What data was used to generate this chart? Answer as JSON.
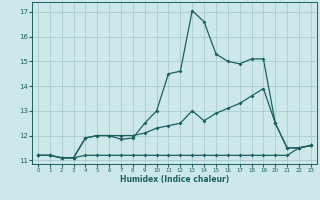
{
  "xlabel": "Humidex (Indice chaleur)",
  "xlim": [
    -0.5,
    23.5
  ],
  "ylim": [
    10.85,
    17.4
  ],
  "yticks": [
    11,
    12,
    13,
    14,
    15,
    16,
    17
  ],
  "xticks": [
    0,
    1,
    2,
    3,
    4,
    5,
    6,
    7,
    8,
    9,
    10,
    11,
    12,
    13,
    14,
    15,
    16,
    17,
    18,
    19,
    20,
    21,
    22,
    23
  ],
  "bg_color": "#cce8e8",
  "grid_color": "#aacccc",
  "line_color": "#1a6060",
  "line1_x": [
    0,
    1,
    2,
    3,
    4,
    5,
    6,
    7,
    8,
    9,
    10,
    11,
    12,
    13,
    14,
    15,
    16,
    17,
    18,
    19,
    20,
    21,
    22,
    23
  ],
  "line1_y": [
    11.2,
    11.2,
    11.1,
    11.1,
    11.9,
    12.0,
    12.0,
    11.85,
    11.9,
    12.5,
    13.0,
    14.5,
    14.6,
    17.05,
    16.6,
    15.3,
    15.0,
    14.9,
    15.1,
    15.1,
    12.5,
    11.5,
    11.5,
    11.6
  ],
  "line2_x": [
    0,
    1,
    2,
    3,
    4,
    5,
    6,
    7,
    8,
    9,
    10,
    11,
    12,
    13,
    14,
    15,
    16,
    17,
    18,
    19,
    20,
    21,
    22,
    23
  ],
  "line2_y": [
    11.2,
    11.2,
    11.1,
    11.1,
    11.9,
    12.0,
    12.0,
    12.0,
    12.0,
    12.1,
    12.3,
    12.4,
    12.5,
    13.0,
    12.6,
    12.9,
    13.1,
    13.3,
    13.6,
    13.9,
    12.5,
    11.5,
    11.5,
    11.6
  ],
  "line3_x": [
    0,
    1,
    2,
    3,
    4,
    5,
    6,
    7,
    8,
    9,
    10,
    11,
    12,
    13,
    14,
    15,
    16,
    17,
    18,
    19,
    20,
    21,
    22,
    23
  ],
  "line3_y": [
    11.2,
    11.2,
    11.1,
    11.1,
    11.2,
    11.2,
    11.2,
    11.2,
    11.2,
    11.2,
    11.2,
    11.2,
    11.2,
    11.2,
    11.2,
    11.2,
    11.2,
    11.2,
    11.2,
    11.2,
    11.2,
    11.2,
    11.5,
    11.6
  ]
}
